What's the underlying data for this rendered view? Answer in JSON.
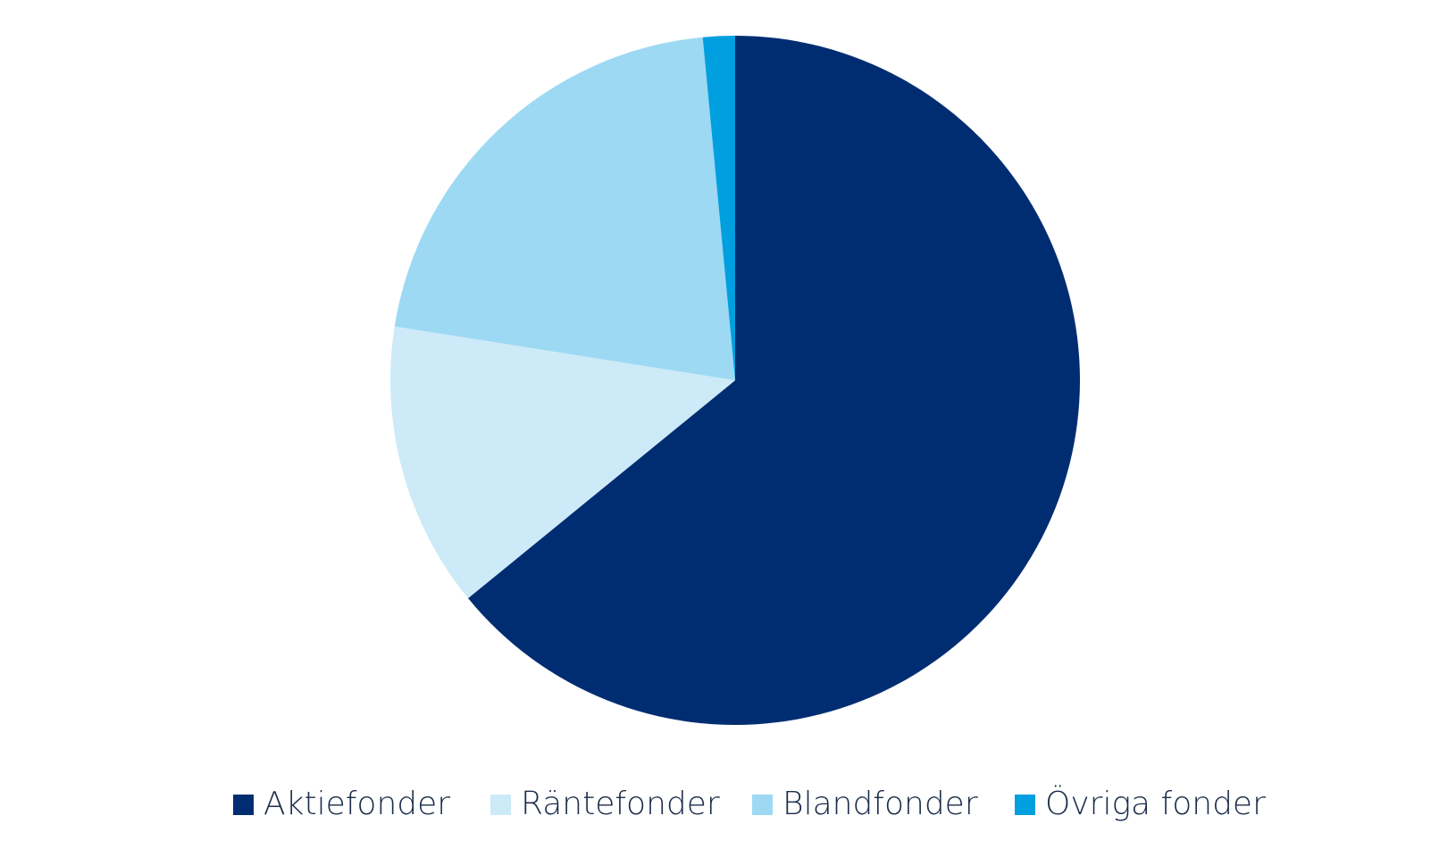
{
  "chart_data": {
    "type": "pie",
    "categories": [
      "Aktiefonder",
      "Räntefonder",
      "Blandfonder",
      "Övriga fonder"
    ],
    "values": [
      64.1,
      13.4,
      21.0,
      1.5
    ],
    "colors": [
      "#002d72",
      "#cdeaf8",
      "#9dd9f3",
      "#009fe0"
    ],
    "legend": "bottom"
  }
}
